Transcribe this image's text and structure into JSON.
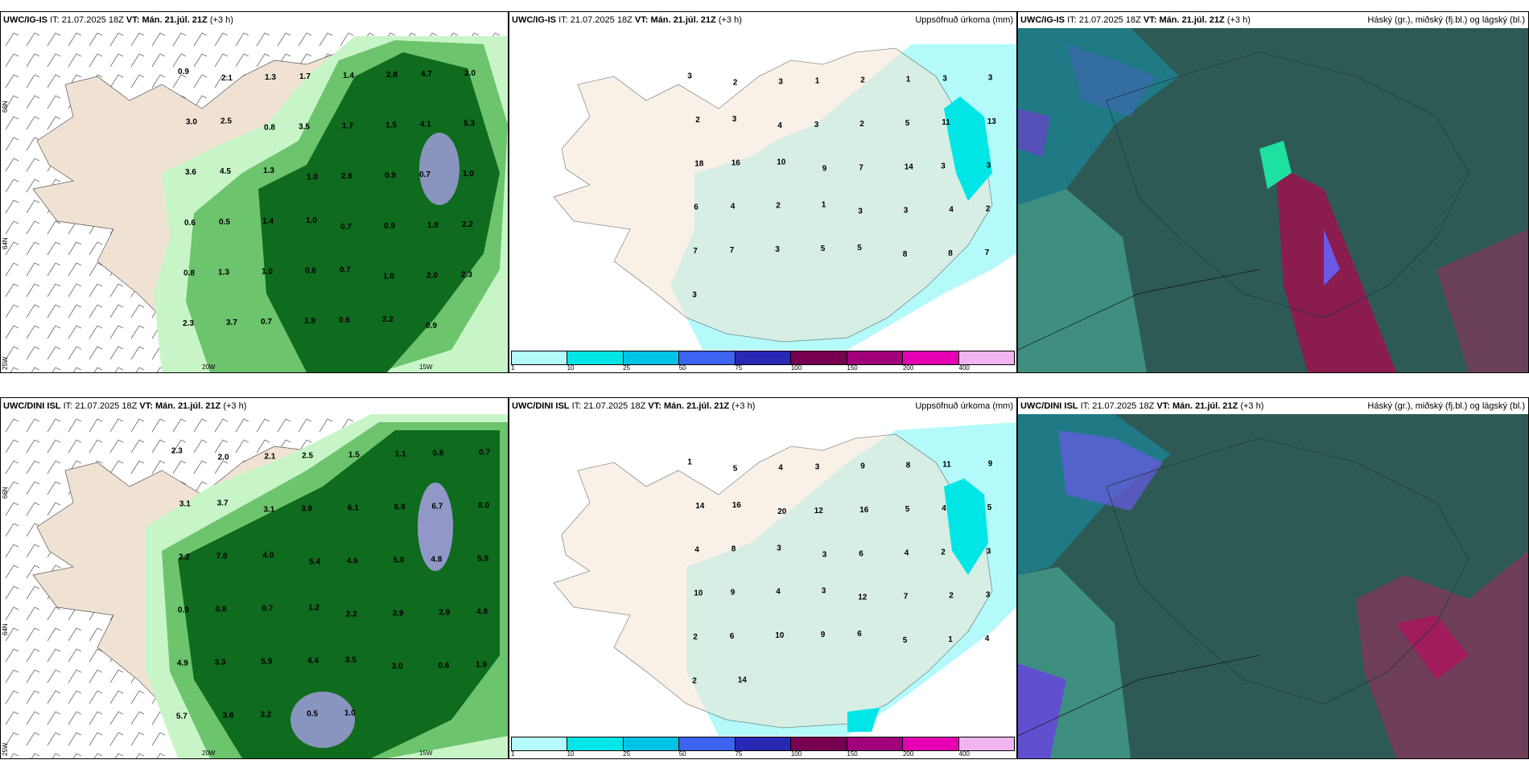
{
  "panels": {
    "tl": {
      "model": "UWC/IG-IS",
      "it_label": "IT:",
      "it": "21.07.2025 18Z",
      "vt_label": "VT:",
      "vt": "Mán. 21.júl. 21Z",
      "lead": "(+3 h)",
      "right": ""
    },
    "tm": {
      "model": "UWC/IG-IS",
      "it_label": "IT:",
      "it": "21.07.2025 18Z",
      "vt_label": "VT:",
      "vt": "Mán. 21.júl. 21Z",
      "lead": "(+3 h)",
      "right": "Uppsöfnuð úrkoma (mm)"
    },
    "tr": {
      "model": "UWC/IG-IS",
      "it_label": "IT:",
      "it": "21.07.2025 18Z",
      "vt_label": "VT:",
      "vt": "Mán. 21.júl. 21Z",
      "lead": "(+3 h)",
      "right": "Háský (gr.), miðský (fj.bl.) og lágský (bl.)"
    },
    "bl": {
      "model": "UWC/DINI ISL",
      "it_label": "IT:",
      "it": "21.07.2025 18Z",
      "vt_label": "VT:",
      "vt": "Mán. 21.júl. 21Z",
      "lead": "(+3 h)",
      "right": ""
    },
    "bm": {
      "model": "UWC/DINI ISL",
      "it_label": "IT:",
      "it": "21.07.2025 18Z",
      "vt_label": "VT:",
      "vt": "Mán. 21.júl. 21Z",
      "lead": "(+3 h)",
      "right": "Uppsöfnuð úrkoma (mm)"
    },
    "br": {
      "model": "UWC/DINI ISL",
      "it_label": "IT:",
      "it": "21.07.2025 18Z",
      "vt_label": "VT:",
      "vt": "Mán. 21.júl. 21Z",
      "lead": "(+3 h)",
      "right": "Háský (gr.), miðský (fj.bl.) og lágský (bl.)"
    }
  },
  "axis_ticks": {
    "lat_top": "66N",
    "lat_mid": "64N",
    "lon_25": "25W",
    "lon_20": "20W",
    "lon_15": "15W"
  },
  "colorbar": {
    "labels": [
      "1",
      "10",
      "25",
      "50",
      "75",
      "100",
      "150",
      "200",
      "400"
    ],
    "colors": [
      "#b4fafa",
      "#00e6e6",
      "#00c3e6",
      "#3c64f0",
      "#2828b4",
      "#780050",
      "#a0007a",
      "#e600b4",
      "#f0b4f0"
    ]
  },
  "colors": {
    "land": "#f5e6d5",
    "ocean": "#ffffff",
    "precip_light": "#b4fafa",
    "wind": "#555555"
  },
  "values": {
    "tl": [
      "0.9",
      "2.1",
      "1.3",
      "1.7",
      "1.4",
      "2.8",
      "4.7",
      "2.0",
      "3.0",
      "2.5",
      "0.8",
      "3.5",
      "1.7",
      "1.5",
      "4.1",
      "5.3",
      "3.6",
      "4.5",
      "1.3",
      "1.0",
      "2.6",
      "0.9",
      "0.7",
      "1.0",
      "0.6",
      "0.5",
      "1.4",
      "1.0",
      "0.7",
      "0.9",
      "1.8",
      "2.2",
      "0.8",
      "1.3",
      "1.0",
      "0.6",
      "0.7",
      "1.0",
      "2.0",
      "2.3",
      "2.3",
      "3.7",
      "0.7",
      "1.9",
      "0.6",
      "2.2",
      "0.9"
    ],
    "tm": [
      "3",
      "2",
      "3",
      "1",
      "2",
      "1",
      "3",
      "3",
      "2",
      "3",
      "4",
      "3",
      "2",
      "5",
      "11",
      "13",
      "18",
      "16",
      "10",
      "9",
      "7",
      "14",
      "3",
      "3",
      "6",
      "4",
      "2",
      "1",
      "3",
      "3",
      "4",
      "2",
      "7",
      "7",
      "3",
      "5",
      "5",
      "8",
      "8",
      "7",
      "3"
    ],
    "bl": [
      "2.3",
      "2.0",
      "2.1",
      "2.5",
      "1.5",
      "1.1",
      "0.8",
      "0.7",
      "3.1",
      "3.7",
      "3.1",
      "3.9",
      "6.1",
      "6.9",
      "6.7",
      "8.0",
      "2.2",
      "7.0",
      "4.0",
      "5.4",
      "4.6",
      "5.0",
      "4.8",
      "5.9",
      "0.9",
      "0.8",
      "0.7",
      "1.2",
      "2.2",
      "3.9",
      "2.9",
      "4.8",
      "4.9",
      "3.3",
      "5.9",
      "4.4",
      "3.5",
      "3.0",
      "0.6",
      "1.9",
      "5.7",
      "3.6",
      "3.2",
      "0.5",
      "1.0"
    ],
    "bm": [
      "1",
      "5",
      "4",
      "3",
      "9",
      "8",
      "11",
      "9",
      "14",
      "16",
      "20",
      "12",
      "16",
      "5",
      "4",
      "5",
      "4",
      "8",
      "3",
      "3",
      "6",
      "4",
      "2",
      "3",
      "10",
      "9",
      "4",
      "3",
      "12",
      "7",
      "2",
      "3",
      "2",
      "6",
      "10",
      "9",
      "6",
      "5",
      "1",
      "4",
      "2",
      "14"
    ]
  }
}
